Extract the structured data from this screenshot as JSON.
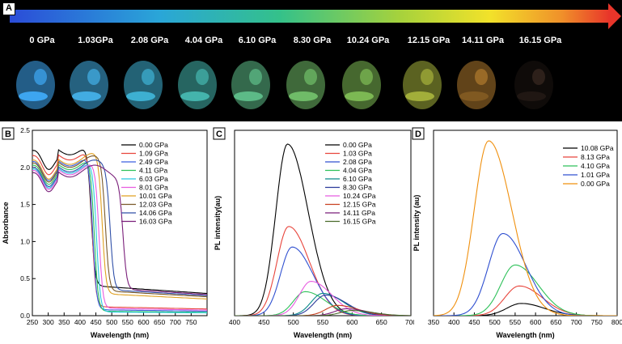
{
  "panel_a": {
    "label": "A",
    "pressures": [
      "0 GPa",
      "1.03GPa",
      "2.08 GPa",
      "4.04 GPa",
      "6.10  GPa",
      "8.30 GPa",
      "10.24 GPa",
      "12.15 GPa",
      "14.11 GPa",
      "16.15 GPa"
    ],
    "glow_colors": [
      "#3fa9f5",
      "#43b0e8",
      "#3fb3d6",
      "#46b8b0",
      "#5fbf8a",
      "#72c06a",
      "#7fbd55",
      "#a6b23c",
      "#b07a2e",
      "#3a2a22"
    ]
  },
  "chart_data": [
    {
      "label": "B",
      "type": "line",
      "xlabel": "Wavelength (nm)",
      "ylabel": "Absorbance",
      "xlim": [
        250,
        800
      ],
      "ylim": [
        0.0,
        2.5
      ],
      "xticks": [
        "250",
        "300",
        "350",
        "400",
        "450",
        "500",
        "550",
        "600",
        "650",
        "700",
        "750"
      ],
      "yticks": [
        "0.0",
        "0.5",
        "1.0",
        "1.5",
        "2.0",
        "2.5"
      ],
      "legend_position": "top-right",
      "series": [
        {
          "name": "0.00 GPa",
          "color": "#000000",
          "edge": 435,
          "high": 2.25,
          "tail": 0.4
        },
        {
          "name": "1.09 GPa",
          "color": "#e8453c",
          "edge": 438,
          "high": 2.18,
          "tail": 0.12
        },
        {
          "name": "2.49 GPa",
          "color": "#3c5fe0",
          "edge": 440,
          "high": 2.1,
          "tail": 0.08
        },
        {
          "name": "4.11 GPa",
          "color": "#2fc15a",
          "edge": 445,
          "high": 2.05,
          "tail": 0.06
        },
        {
          "name": "6.03 GPa",
          "color": "#28c8e0",
          "edge": 452,
          "high": 2.0,
          "tail": 0.05
        },
        {
          "name": "8.01 GPa",
          "color": "#e85ce0",
          "edge": 460,
          "high": 1.98,
          "tail": 0.1
        },
        {
          "name": "10.01 GPa",
          "color": "#e0a020",
          "edge": 470,
          "high": 2.12,
          "tail": 0.3
        },
        {
          "name": "12.03 GPa",
          "color": "#7a5a2a",
          "edge": 480,
          "high": 2.08,
          "tail": 0.34
        },
        {
          "name": "14.06 GPa",
          "color": "#3050a8",
          "edge": 495,
          "high": 2.02,
          "tail": 0.36
        },
        {
          "name": "16.03 GPa",
          "color": "#7a1f7a",
          "edge": 535,
          "high": 1.95,
          "tail": 0.38
        }
      ]
    },
    {
      "label": "C",
      "type": "line",
      "xlabel": "Wavelength (nm)",
      "ylabel": "PL intensity(au)",
      "xlim": [
        400,
        700
      ],
      "xticks": [
        "400",
        "450",
        "500",
        "550",
        "600",
        "650",
        "700"
      ],
      "legend_position": "top-right",
      "series": [
        {
          "name": "0.00 GPa",
          "color": "#000000",
          "peak": 490,
          "height": 1.0
        },
        {
          "name": "1.03 GPa",
          "color": "#e8453c",
          "peak": 492,
          "height": 0.52
        },
        {
          "name": "2.08 GPa",
          "color": "#3050d0",
          "peak": 498,
          "height": 0.4
        },
        {
          "name": "4.04 GPa",
          "color": "#2fc15a",
          "peak": 520,
          "height": 0.14
        },
        {
          "name": "6.10 GPa",
          "color": "#0a8a8a",
          "peak": 550,
          "height": 0.13
        },
        {
          "name": "8.30 GPa",
          "color": "#2a3a9a",
          "peak": 555,
          "height": 0.12
        },
        {
          "name": "10.24 GPa",
          "color": "#e85ce0",
          "peak": 530,
          "height": 0.2
        },
        {
          "name": "12.15 GPa",
          "color": "#c84020",
          "peak": 575,
          "height": 0.06
        },
        {
          "name": "14.11 GPa",
          "color": "#7a1f7a",
          "peak": 590,
          "height": 0.04
        },
        {
          "name": "16.15 GPa",
          "color": "#4a6a2a",
          "peak": 600,
          "height": 0.03
        }
      ]
    },
    {
      "label": "D",
      "type": "line",
      "xlabel": "Wavelength (nm)",
      "ylabel": "PL intensity (au)",
      "xlim": [
        350,
        800
      ],
      "xticks": [
        "350",
        "400",
        "450",
        "500",
        "550",
        "600",
        "650",
        "700",
        "750",
        "800"
      ],
      "legend_position": "top-right",
      "series": [
        {
          "name": "10.08 GPa",
          "color": "#000000",
          "peak": 565,
          "height": 0.07
        },
        {
          "name": "8.13 GPa",
          "color": "#e8453c",
          "peak": 560,
          "height": 0.17
        },
        {
          "name": "4.10 GPa",
          "color": "#2fc15a",
          "peak": 550,
          "height": 0.29
        },
        {
          "name": "1.01 GPa",
          "color": "#3050d0",
          "peak": 520,
          "height": 0.47
        },
        {
          "name": "0.00 GPa",
          "color": "#f0900e",
          "peak": 485,
          "height": 1.0
        }
      ]
    }
  ]
}
